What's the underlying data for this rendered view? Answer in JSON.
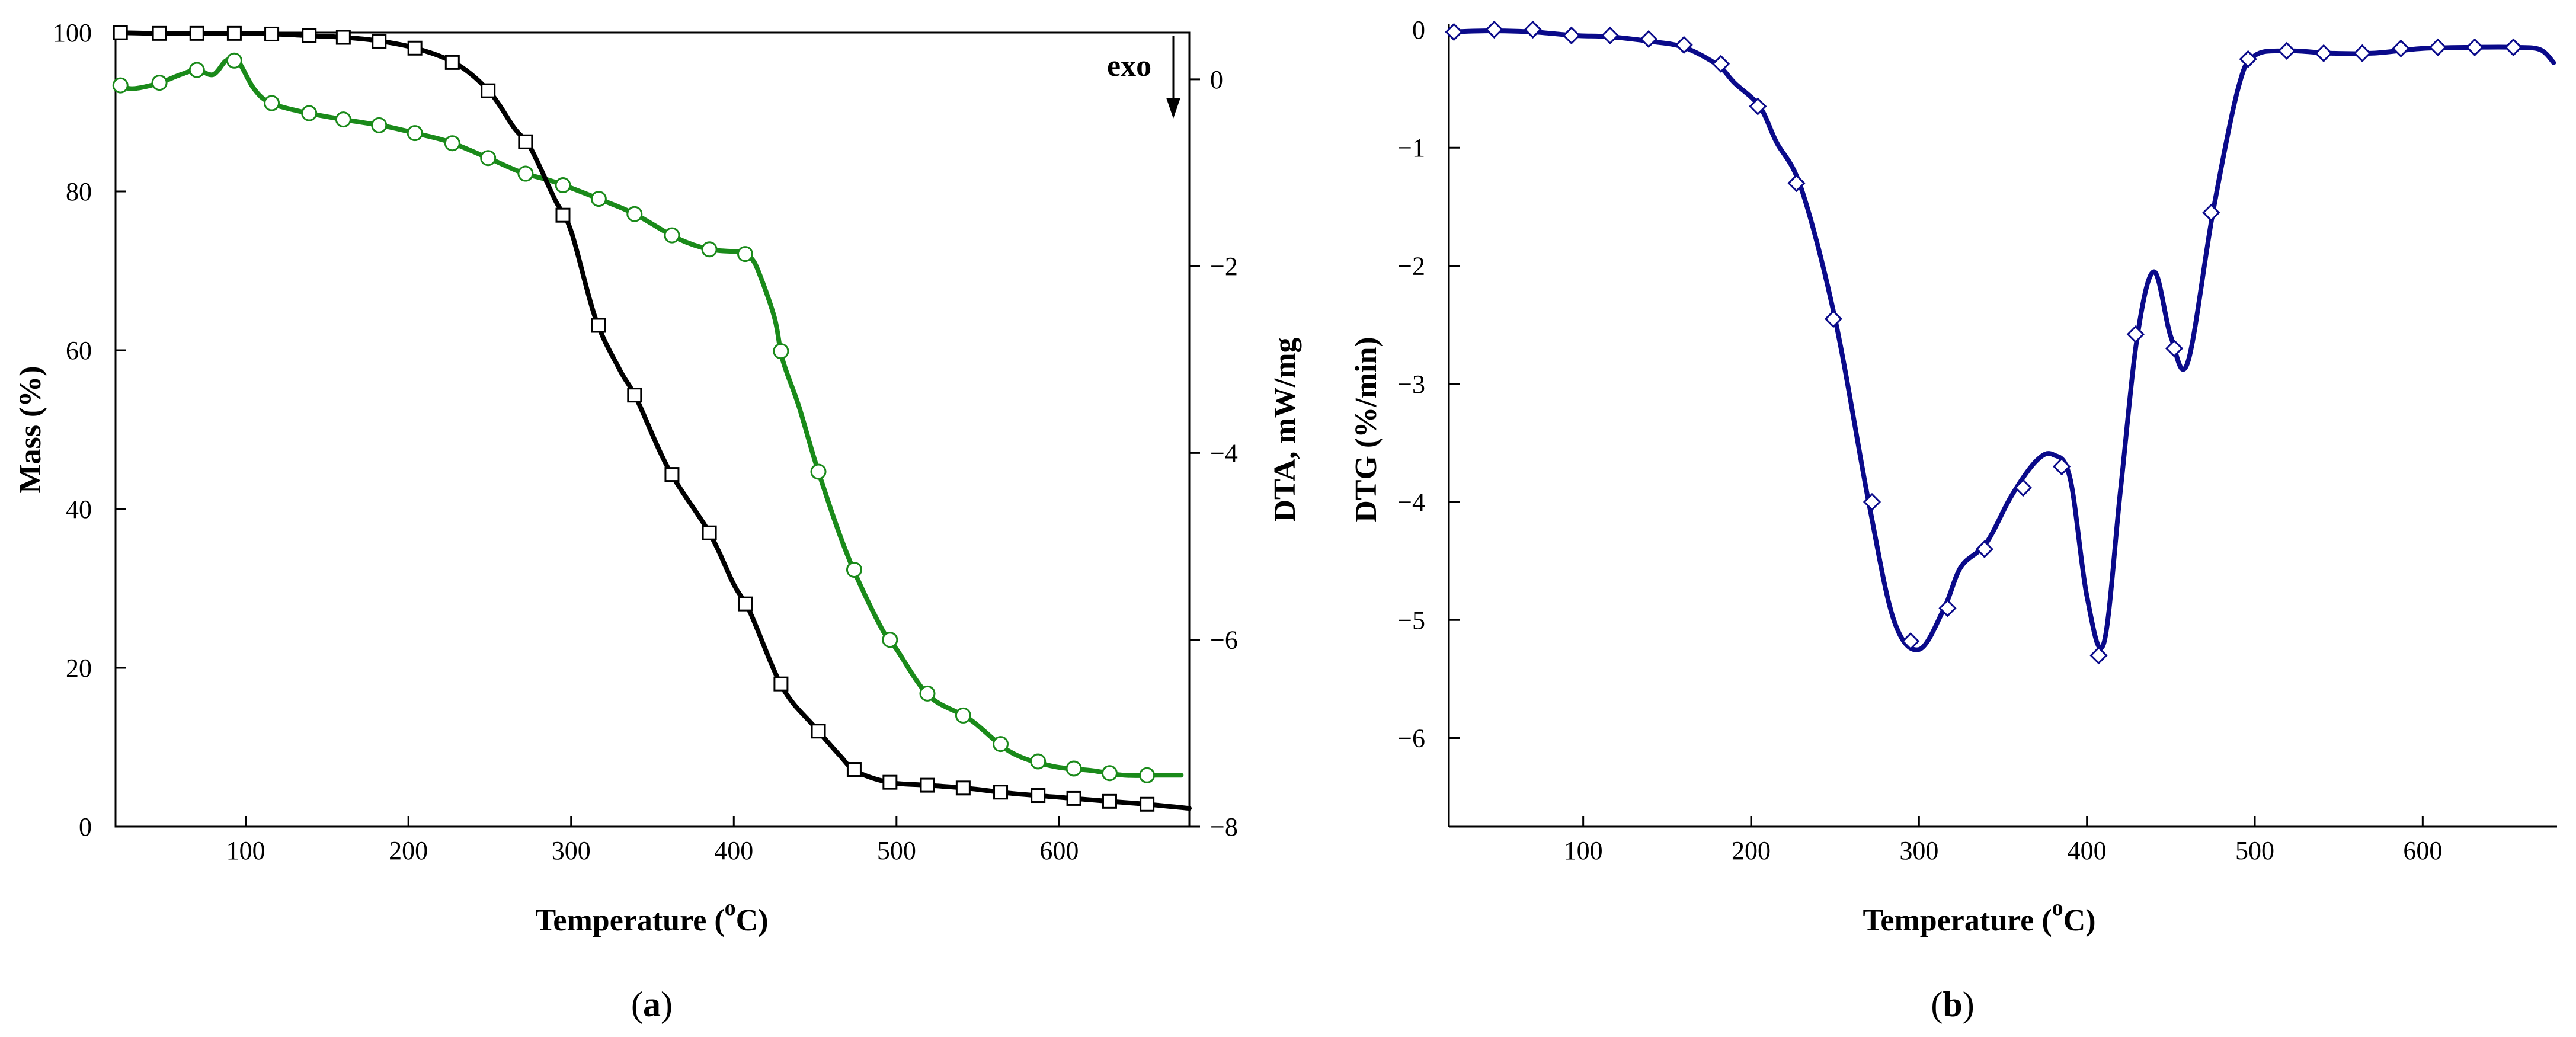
{
  "colors": {
    "tg": "#000000",
    "dta": "#1a8a1a",
    "dtg": "#0a0a8a",
    "marker_fill": "#ffffff"
  },
  "panels": {
    "a": {
      "label_open": "(",
      "label_letter": "a",
      "label_close": ")"
    },
    "b": {
      "label_open": "(",
      "label_letter": "b",
      "label_close": ")"
    }
  },
  "chart_data": [
    {
      "id": "a",
      "type": "line",
      "xlabel_text": "Temperature (",
      "xlabel_sup": "o",
      "xlabel_unit": "C)",
      "ylabel": "Mass (%)",
      "y2label": "DTA, mW/mg",
      "annotation": "exo",
      "xlim": [
        20,
        680
      ],
      "ylim": [
        0,
        100
      ],
      "y2lim": [
        -8,
        0.5
      ],
      "xticks": [
        100,
        200,
        300,
        400,
        500,
        600
      ],
      "yticks": [
        0,
        20,
        40,
        60,
        80,
        100
      ],
      "y2ticks": [
        0,
        -2,
        -4,
        -6,
        -8
      ],
      "y2ticklabels": [
        "0",
        "−2",
        "−4",
        "−6",
        "−8"
      ],
      "series": [
        {
          "name": "TG (Mass)",
          "axis": "left",
          "marker": "square",
          "x": [
            20,
            45,
            70,
            95,
            120,
            140,
            160,
            180,
            205,
            230,
            250,
            265,
            275,
            290,
            300,
            315,
            330,
            340,
            360,
            385,
            400,
            410,
            430,
            450,
            465,
            475,
            495,
            520,
            545,
            570,
            600,
            630,
            655,
            680
          ],
          "y": [
            100,
            99.9,
            99.9,
            99.9,
            99.8,
            99.6,
            99.4,
            99.0,
            98.0,
            96.0,
            92.5,
            88.0,
            85.5,
            79.0,
            75.0,
            64.0,
            57.5,
            54.0,
            45.0,
            37.0,
            30.5,
            27.0,
            17.5,
            12.5,
            9.0,
            7.0,
            5.6,
            5.2,
            4.8,
            4.2,
            3.7,
            3.2,
            2.8,
            2.3
          ],
          "markers_x": [
            23,
            47,
            70,
            93,
            116,
            139,
            160,
            182,
            204,
            227,
            249,
            272,
            295,
            317,
            339,
            362,
            385,
            407,
            429,
            452,
            474,
            496,
            519,
            541,
            564,
            587,
            609,
            631,
            654
          ]
        },
        {
          "name": "DTA",
          "axis": "right",
          "marker": "circle",
          "x": [
            20,
            30,
            45,
            60,
            70,
            80,
            88,
            95,
            105,
            115,
            135,
            160,
            185,
            205,
            225,
            250,
            270,
            290,
            320,
            340,
            365,
            385,
            405,
            410,
            415,
            425,
            430,
            440,
            452,
            470,
            490,
            500,
            520,
            545,
            570,
            595,
            620,
            640,
            660,
            675
          ],
          "y": [
            -0.05,
            -0.1,
            -0.05,
            0.05,
            0.1,
            0.05,
            0.2,
            0.2,
            -0.1,
            -0.25,
            -0.35,
            -0.43,
            -0.5,
            -0.58,
            -0.67,
            -0.85,
            -1.0,
            -1.1,
            -1.3,
            -1.45,
            -1.7,
            -1.82,
            -1.85,
            -1.9,
            -2.05,
            -2.55,
            -3.0,
            -3.5,
            -4.2,
            -5.1,
            -5.85,
            -6.1,
            -6.6,
            -6.85,
            -7.2,
            -7.35,
            -7.4,
            -7.45,
            -7.45,
            -7.45
          ],
          "markers_x": [
            23,
            47,
            70,
            93,
            116,
            139,
            160,
            182,
            204,
            227,
            249,
            272,
            295,
            317,
            339,
            362,
            385,
            407,
            429,
            452,
            474,
            496,
            519,
            541,
            564,
            587,
            609,
            631,
            654
          ]
        }
      ]
    },
    {
      "id": "b",
      "type": "line",
      "xlabel_text": "Temperature (",
      "xlabel_sup": "o",
      "xlabel_unit": "C)",
      "ylabel": "DTG (%/min)",
      "xlim": [
        20,
        680
      ],
      "ylim": [
        -6.75,
        0.05
      ],
      "xticks": [
        100,
        200,
        300,
        400,
        500,
        600
      ],
      "yticks": [
        0,
        -1,
        -2,
        -3,
        -4,
        -5,
        -6
      ],
      "yticklabels": [
        "0",
        "−1",
        "−2",
        "−3",
        "−4",
        "−5",
        "−6"
      ],
      "series": [
        {
          "name": "DTG",
          "axis": "left",
          "marker": "diamond",
          "x": [
            20,
            45,
            70,
            95,
            115,
            140,
            160,
            180,
            190,
            205,
            215,
            230,
            250,
            270,
            285,
            300,
            315,
            325,
            340,
            355,
            370,
            380,
            390,
            400,
            410,
            420,
            430,
            440,
            450,
            460,
            475,
            490,
            500,
            520,
            545,
            570,
            600,
            630,
            655,
            670,
            678
          ],
          "y": [
            -0.02,
            -0.01,
            -0.02,
            -0.05,
            -0.06,
            -0.1,
            -0.15,
            -0.3,
            -0.45,
            -0.65,
            -0.95,
            -1.35,
            -2.45,
            -4.0,
            -5.0,
            -5.25,
            -4.9,
            -4.55,
            -4.35,
            -3.95,
            -3.65,
            -3.6,
            -3.8,
            -4.8,
            -5.2,
            -3.9,
            -2.6,
            -2.05,
            -2.6,
            -2.82,
            -1.55,
            -0.5,
            -0.22,
            -0.18,
            -0.2,
            -0.2,
            -0.16,
            -0.15,
            -0.15,
            -0.17,
            -0.28
          ],
          "markers": [
            [
              23,
              -0.02
            ],
            [
              47,
              0.0
            ],
            [
              70,
              0.0
            ],
            [
              93,
              -0.05
            ],
            [
              116,
              -0.05
            ],
            [
              139,
              -0.08
            ],
            [
              160,
              -0.13
            ],
            [
              182,
              -0.29
            ],
            [
              204,
              -0.65
            ],
            [
              227,
              -1.3
            ],
            [
              249,
              -2.45
            ],
            [
              272,
              -4.0
            ],
            [
              295,
              -5.18
            ],
            [
              317,
              -4.9
            ],
            [
              339,
              -4.4
            ],
            [
              362,
              -3.88
            ],
            [
              385,
              -3.7
            ],
            [
              407,
              -5.3
            ],
            [
              429,
              -2.58
            ],
            [
              452,
              -2.7
            ],
            [
              474,
              -1.55
            ],
            [
              496,
              -0.25
            ],
            [
              519,
              -0.18
            ],
            [
              541,
              -0.2
            ],
            [
              564,
              -0.2
            ],
            [
              587,
              -0.16
            ],
            [
              609,
              -0.15
            ],
            [
              631,
              -0.15
            ],
            [
              654,
              -0.15
            ]
          ]
        }
      ]
    }
  ]
}
